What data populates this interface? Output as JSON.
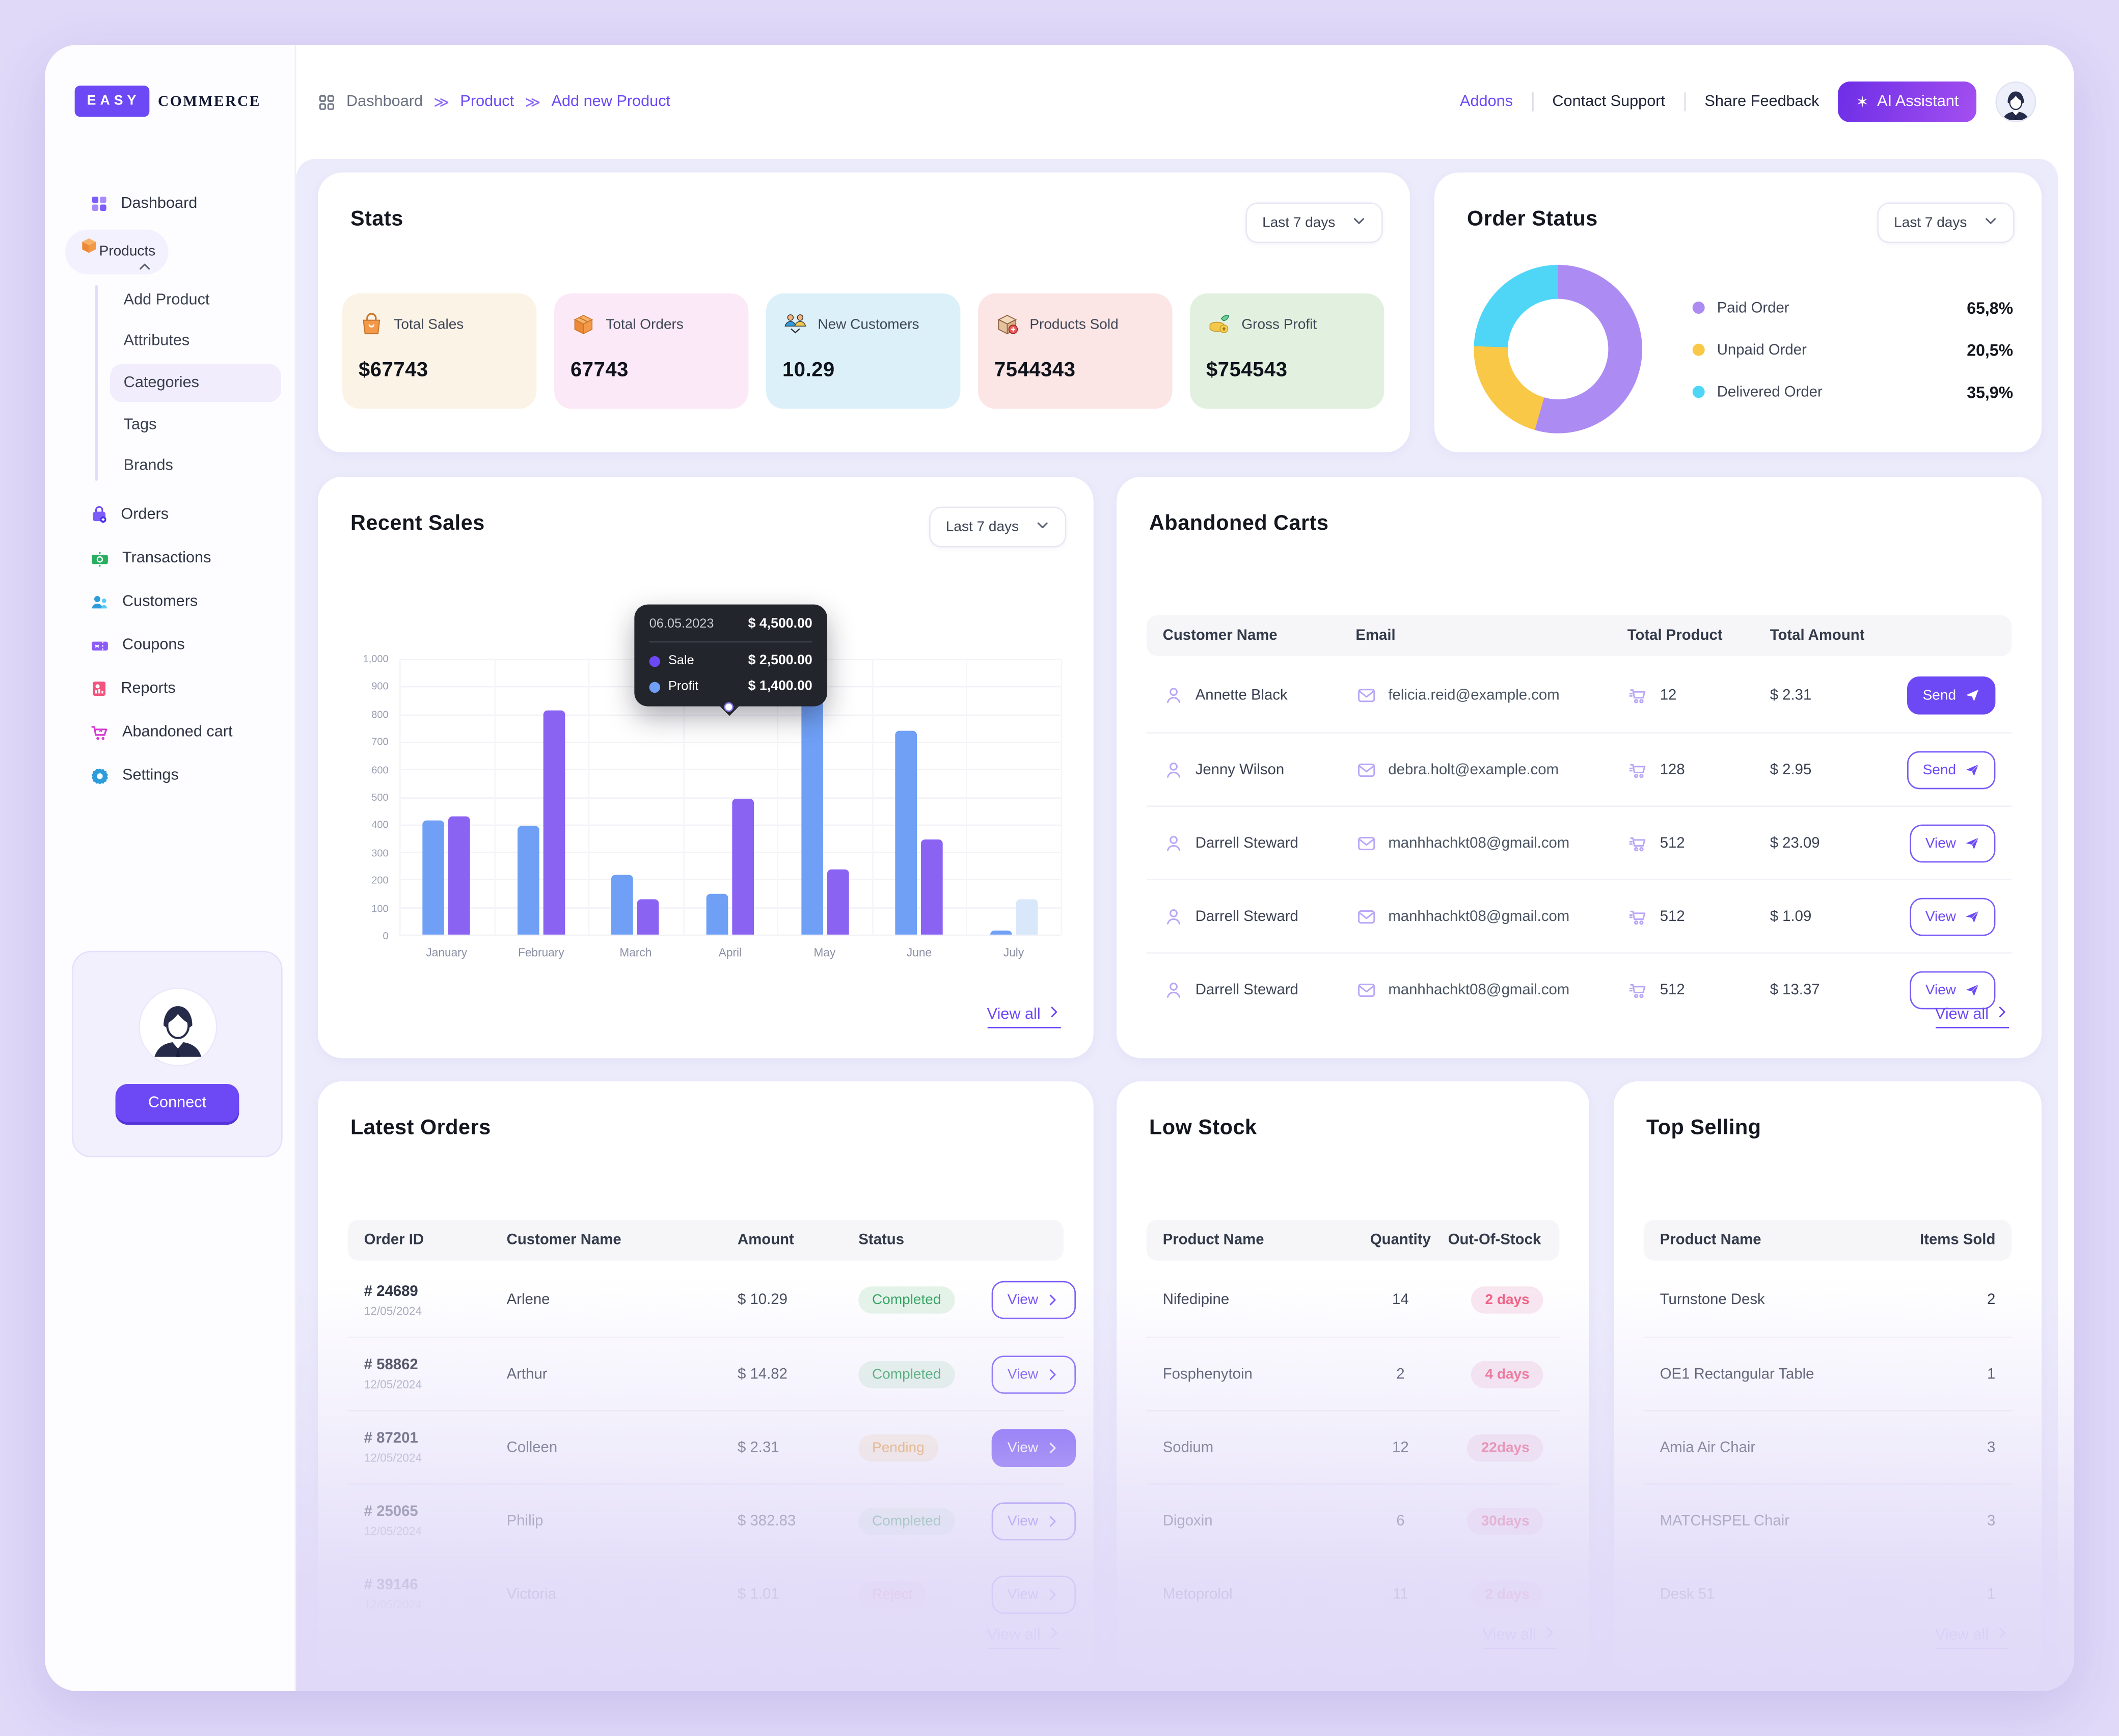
{
  "app": {
    "page_bg": "#E0D9F8",
    "accent": "#6C49F5"
  },
  "logo": {
    "primary": "EASY",
    "secondary": "COMMERCE"
  },
  "breadcrumb": {
    "separator": "≫",
    "items": [
      {
        "label": "Dashboard"
      },
      {
        "label": "Product"
      },
      {
        "label": "Add new Product"
      }
    ]
  },
  "topnav": {
    "links": [
      "Addons",
      "Contact Support",
      "Share Feedback"
    ],
    "ai_button": "AI Assistant"
  },
  "sidebar": {
    "items": [
      {
        "label": "Dashboard",
        "icon": "dashboard"
      },
      {
        "label": "Products",
        "icon": "products",
        "active": true,
        "expanded": true,
        "children": [
          {
            "label": "Add Product"
          },
          {
            "label": "Attributes"
          },
          {
            "label": "Categories",
            "active": true
          },
          {
            "label": "Tags"
          },
          {
            "label": "Brands"
          }
        ]
      },
      {
        "label": "Orders",
        "icon": "orders"
      },
      {
        "label": "Transactions",
        "icon": "transactions"
      },
      {
        "label": "Customers",
        "icon": "customers"
      },
      {
        "label": "Coupons",
        "icon": "coupons"
      },
      {
        "label": "Reports",
        "icon": "reports"
      },
      {
        "label": "Abandoned cart",
        "icon": "abandoned-cart"
      },
      {
        "label": "Settings",
        "icon": "settings"
      }
    ],
    "connect_button": "Connect"
  },
  "stats": {
    "title": "Stats",
    "period": "Last 7 days",
    "cards": [
      {
        "label": "Total Sales",
        "value": "$67743",
        "bg": "#FCF3E7",
        "icon": "shopping-bag"
      },
      {
        "label": "Total Orders",
        "value": "67743",
        "bg": "#FBE9F7",
        "icon": "package-box"
      },
      {
        "label": "New Customers",
        "value": "10.29",
        "bg": "#DCF0FA",
        "icon": "customers-handshake"
      },
      {
        "label": "Products Sold",
        "value": "7544343",
        "bg": "#FBE5E5",
        "icon": "products-box"
      },
      {
        "label": "Gross Profit",
        "value": "$754543",
        "bg": "#E2F1DF",
        "icon": "profit-coins"
      }
    ]
  },
  "order_status": {
    "title": "Order Status",
    "period": "Last 7 days"
  },
  "recent_sales": {
    "title": "Recent Sales",
    "period": "Last 7 days",
    "view_all": "View all",
    "tooltip": {
      "date": "06.05.2023",
      "total": "$ 4,500.00",
      "rows": [
        {
          "label": "Sale",
          "value": "$ 2,500.00",
          "color": "#6C49F5"
        },
        {
          "label": "Profit",
          "value": "$ 1,400.00",
          "color": "#6FA0F6"
        }
      ]
    }
  },
  "chart_data": [
    {
      "type": "bar",
      "title": "Recent Sales",
      "categories": [
        "January",
        "February",
        "March",
        "April",
        "May",
        "June",
        "July"
      ],
      "series": [
        {
          "name": "Profit",
          "color": "#6FA0F6",
          "values": [
            415,
            395,
            215,
            150,
            970,
            740,
            15
          ]
        },
        {
          "name": "Sale",
          "color": "#8A63F3",
          "values": [
            430,
            815,
            130,
            495,
            235,
            345,
            130
          ],
          "last_bar_color": "#D9E7FB"
        }
      ],
      "ylim": [
        0,
        1000
      ],
      "yticks": [
        "1,000",
        "900",
        "800",
        "700",
        "600",
        "500",
        "400",
        "300",
        "200",
        "100",
        "0"
      ],
      "grid": true,
      "legend_position": "none"
    },
    {
      "type": "donut",
      "title": "Order Status",
      "slices": [
        {
          "label": "Paid Order",
          "value": "65,8%",
          "color": "#AC8BF2",
          "sweep_deg": 196
        },
        {
          "label": "Unpaid Order",
          "value": "20,5%",
          "color": "#F9C846",
          "sweep_deg": 76
        },
        {
          "label": "Delivered Order",
          "value": "35,9%",
          "color": "#4FD6F7",
          "sweep_deg": 88
        }
      ]
    }
  ],
  "abandoned_carts": {
    "title": "Abandoned Carts",
    "view_all": "View all",
    "headers": [
      "Customer Name",
      "Email",
      "Total Product",
      "Total Amount"
    ],
    "rows": [
      {
        "customer": "Annette Black",
        "email": "felicia.reid@example.com",
        "total_product": "12",
        "total_amount": "$ 2.31",
        "action": "Send",
        "action_variant": "filled"
      },
      {
        "customer": "Jenny Wilson",
        "email": "debra.holt@example.com",
        "total_product": "128",
        "total_amount": "$ 2.95",
        "action": "Send",
        "action_variant": "outline"
      },
      {
        "customer": "Darrell Steward",
        "email": "manhhachkt08@gmail.com",
        "total_product": "512",
        "total_amount": "$ 23.09",
        "action": "View",
        "action_variant": "outline"
      },
      {
        "customer": "Darrell Steward",
        "email": "manhhachkt08@gmail.com",
        "total_product": "512",
        "total_amount": "$ 1.09",
        "action": "View",
        "action_variant": "outline"
      },
      {
        "customer": "Darrell Steward",
        "email": "manhhachkt08@gmail.com",
        "total_product": "512",
        "total_amount": "$ 13.37",
        "action": "View",
        "action_variant": "outline"
      }
    ]
  },
  "latest_orders": {
    "title": "Latest Orders",
    "view_all": "View all",
    "headers": [
      "Order ID",
      "Customer Name",
      "Amount",
      "Status"
    ],
    "rows": [
      {
        "order_id": "# 24689",
        "date": "12/05/2024",
        "customer": "Arlene",
        "amount": "$ 10.29",
        "status": "Completed",
        "status_variant": "completed",
        "action": "View",
        "action_variant": "outline"
      },
      {
        "order_id": "# 58862",
        "date": "12/05/2024",
        "customer": "Arthur",
        "amount": "$ 14.82",
        "status": "Completed",
        "status_variant": "completed",
        "action": "View",
        "action_variant": "outline"
      },
      {
        "order_id": "# 87201",
        "date": "12/05/2024",
        "customer": "Colleen",
        "amount": "$ 2.31",
        "status": "Pending",
        "status_variant": "pending",
        "action": "View",
        "action_variant": "filled"
      },
      {
        "order_id": "# 25065",
        "date": "12/05/2024",
        "customer": "Philip",
        "amount": "$ 382.83",
        "status": "Completed",
        "status_variant": "completed",
        "action": "View",
        "action_variant": "outline"
      },
      {
        "order_id": "# 39146",
        "date": "12/05/2024",
        "customer": "Victoria",
        "amount": "$ 1.01",
        "status": "Reject",
        "status_variant": "reject",
        "action": "View",
        "action_variant": "outline"
      }
    ]
  },
  "low_stock": {
    "title": "Low Stock",
    "view_all": "View all",
    "headers": [
      "Product Name",
      "Quantity",
      "Out-Of-Stock"
    ],
    "rows": [
      {
        "product": "Nifedipine",
        "quantity": "14",
        "out_of_stock": "2 days"
      },
      {
        "product": "Fosphenytoin",
        "quantity": "2",
        "out_of_stock": "4 days"
      },
      {
        "product": "Sodium",
        "quantity": "12",
        "out_of_stock": "22days"
      },
      {
        "product": "Digoxin",
        "quantity": "6",
        "out_of_stock": "30days"
      },
      {
        "product": "Metoprolol",
        "quantity": "11",
        "out_of_stock": "2 days"
      }
    ]
  },
  "top_selling": {
    "title": "Top Selling",
    "view_all": "View all",
    "headers": [
      "Product Name",
      "Items Sold"
    ],
    "rows": [
      {
        "product": "Turnstone Desk",
        "items_sold": "2"
      },
      {
        "product": "OE1 Rectangular Table",
        "items_sold": "1"
      },
      {
        "product": "Amia Air Chair",
        "items_sold": "3"
      },
      {
        "product": "MATCHSPEL Chair",
        "items_sold": "3"
      },
      {
        "product": "Desk 51",
        "items_sold": "1"
      }
    ]
  }
}
